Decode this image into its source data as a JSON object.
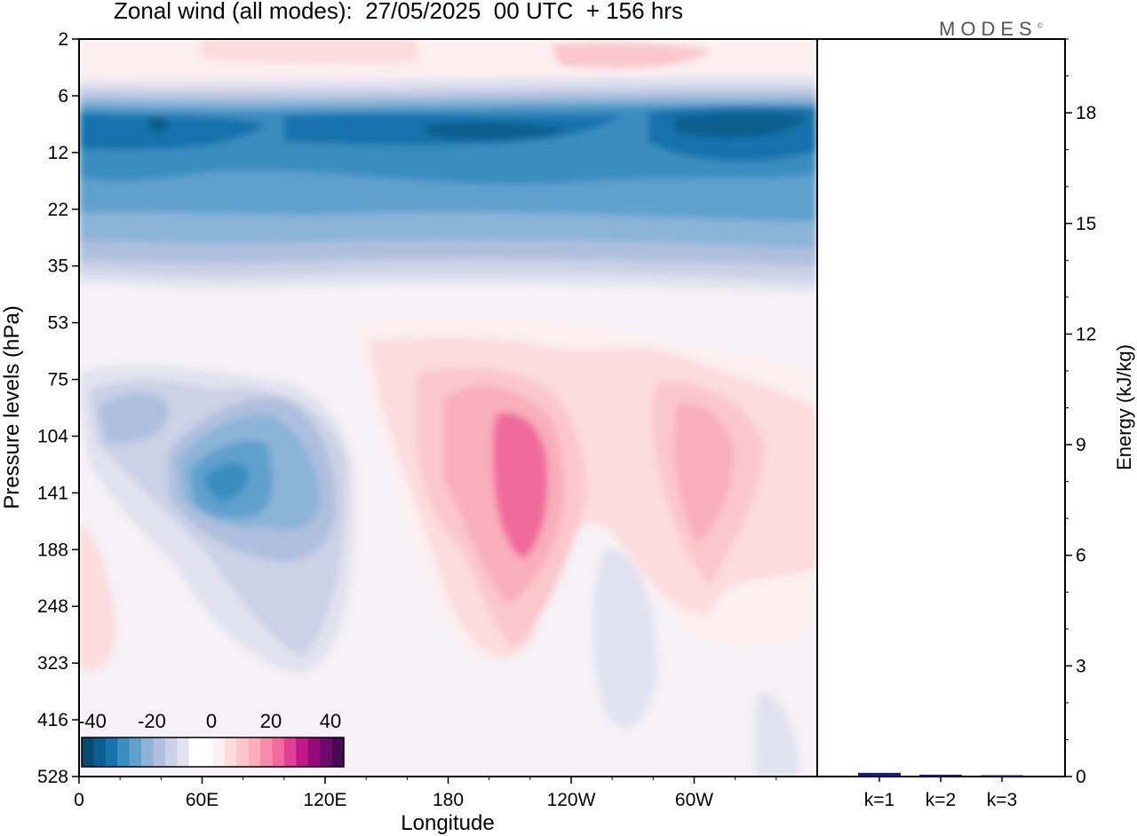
{
  "title": "Zonal wind (all modes):  27/05/2025  00 UTC  + 156 hrs",
  "logo": "MODES",
  "logo_mark": "©",
  "colors": {
    "neg": [
      "#08496e",
      "#0b5e8f",
      "#1772ac",
      "#3a8dc0",
      "#5fa0cd",
      "#8bb4d8",
      "#aebfde",
      "#cbd1e6",
      "#e2e2ef"
    ],
    "zero": "#ffffff",
    "pos": [
      "#fbeff1",
      "#fcdcdd",
      "#fbc7cc",
      "#f9aebb",
      "#f68aa8",
      "#f06a9c",
      "#df3f95",
      "#c1188a",
      "#970a7a",
      "#6e0a6b",
      "#480a54"
    ]
  },
  "chart_data": [
    {
      "type": "heatmap",
      "title": "Zonal wind (all modes):  27/05/2025  00 UTC  + 156 hrs",
      "xlabel": "Longitude",
      "ylabel": "Pressure levels (hPa)",
      "x_ticks": [
        "0",
        "60E",
        "120E",
        "180",
        "120W",
        "60W"
      ],
      "x_tick_values": [
        0,
        60,
        120,
        180,
        240,
        300
      ],
      "x_range": [
        0,
        360
      ],
      "y_ticks": [
        "2",
        "6",
        "12",
        "22",
        "35",
        "53",
        "75",
        "104",
        "141",
        "188",
        "248",
        "323",
        "416",
        "528"
      ],
      "colorbar": {
        "tick_labels": [
          "-40",
          "-20",
          "0",
          "20",
          "40"
        ],
        "tick_values": [
          -40,
          -20,
          0,
          20,
          40
        ]
      },
      "features": [
        {
          "lon": 180,
          "level": "2",
          "value": 8
        },
        {
          "lon": 0,
          "level": "12",
          "value": -22
        },
        {
          "lon": 120,
          "level": "12",
          "value": -20
        },
        {
          "lon": 300,
          "level": "12",
          "value": -28
        },
        {
          "lon": 180,
          "level": "22",
          "value": -15
        },
        {
          "lon": 180,
          "level": "53",
          "value": 4
        },
        {
          "lon": 70,
          "level": "141",
          "value": -22
        },
        {
          "lon": 110,
          "level": "141",
          "value": -18
        },
        {
          "lon": 25,
          "level": "104",
          "value": -8
        },
        {
          "lon": 210,
          "level": "141",
          "value": 24
        },
        {
          "lon": 300,
          "level": "141",
          "value": 16
        },
        {
          "lon": 260,
          "level": "323",
          "value": -4
        },
        {
          "lon": 20,
          "level": "248",
          "value": 4
        }
      ]
    },
    {
      "type": "bar",
      "categories": [
        "k=1",
        "k=2",
        "k=3"
      ],
      "values": [
        0.1,
        0.05,
        0.03
      ],
      "ylabel": "Energy (kJ/kg)",
      "y_ticks": [
        "0",
        "3",
        "6",
        "9",
        "12",
        "15",
        "18"
      ],
      "ylim": [
        0,
        20
      ]
    }
  ]
}
